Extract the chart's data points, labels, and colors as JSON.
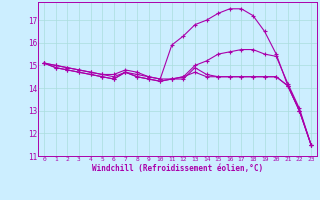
{
  "xlabel": "Windchill (Refroidissement éolien,°C)",
  "background_color": "#cceeff",
  "line_color": "#aa00aa",
  "grid_color": "#aadddd",
  "xlim": [
    -0.5,
    23.5
  ],
  "ylim": [
    11,
    17.8
  ],
  "yticks": [
    11,
    12,
    13,
    14,
    15,
    16,
    17
  ],
  "xticks": [
    0,
    1,
    2,
    3,
    4,
    5,
    6,
    7,
    8,
    9,
    10,
    11,
    12,
    13,
    14,
    15,
    16,
    17,
    18,
    19,
    20,
    21,
    22,
    23
  ],
  "series": [
    {
      "x": [
        0,
        1,
        2,
        3,
        4,
        5,
        6,
        7,
        8,
        9,
        10,
        11,
        12,
        13,
        14,
        15,
        16,
        17,
        18,
        19,
        20,
        21,
        22,
        23
      ],
      "y": [
        15.1,
        15.0,
        14.9,
        14.8,
        14.7,
        14.6,
        14.6,
        14.8,
        14.7,
        14.5,
        14.4,
        14.4,
        14.4,
        14.9,
        14.6,
        14.5,
        14.5,
        14.5,
        14.5,
        14.5,
        14.5,
        14.1,
        13.0,
        11.5
      ]
    },
    {
      "x": [
        0,
        1,
        2,
        3,
        4,
        5,
        6,
        7,
        8,
        9,
        10,
        11,
        12,
        13,
        14,
        15,
        16,
        17,
        18,
        19,
        20,
        21,
        22,
        23
      ],
      "y": [
        15.1,
        15.0,
        14.9,
        14.8,
        14.7,
        14.6,
        14.5,
        14.7,
        14.5,
        14.4,
        14.3,
        14.4,
        14.5,
        15.0,
        15.2,
        15.5,
        15.6,
        15.7,
        15.7,
        15.5,
        15.4,
        14.2,
        13.1,
        11.5
      ]
    },
    {
      "x": [
        0,
        1,
        2,
        3,
        4,
        5,
        6,
        7,
        8,
        9,
        10,
        11,
        12,
        13,
        14,
        15,
        16,
        17,
        18,
        19,
        20,
        21,
        22,
        23
      ],
      "y": [
        15.1,
        14.9,
        14.8,
        14.7,
        14.6,
        14.5,
        14.4,
        14.7,
        14.6,
        14.5,
        14.4,
        15.9,
        16.3,
        16.8,
        17.0,
        17.3,
        17.5,
        17.5,
        17.2,
        16.5,
        15.5,
        14.1,
        13.0,
        11.5
      ]
    },
    {
      "x": [
        0,
        1,
        2,
        3,
        4,
        5,
        6,
        7,
        8,
        9,
        10,
        11,
        12,
        13,
        14,
        15,
        16,
        17,
        18,
        19,
        20,
        21,
        22,
        23
      ],
      "y": [
        15.1,
        14.9,
        14.8,
        14.7,
        14.6,
        14.5,
        14.4,
        14.7,
        14.5,
        14.4,
        14.3,
        14.4,
        14.5,
        14.7,
        14.5,
        14.5,
        14.5,
        14.5,
        14.5,
        14.5,
        14.5,
        14.1,
        13.0,
        11.5
      ]
    }
  ]
}
